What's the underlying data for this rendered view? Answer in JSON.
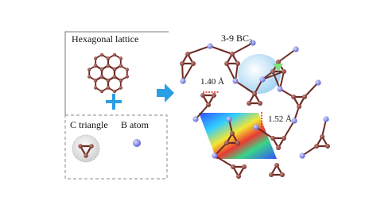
{
  "left": {
    "lattice_label": "Hexagonal lattice",
    "triangle_label": "C triangle",
    "atom_label": "B atom"
  },
  "right": {
    "title": "3-9 BC",
    "title_subscript": "3",
    "bond_short": "1.40 Å",
    "bond_long": "1.52 Å"
  }
}
